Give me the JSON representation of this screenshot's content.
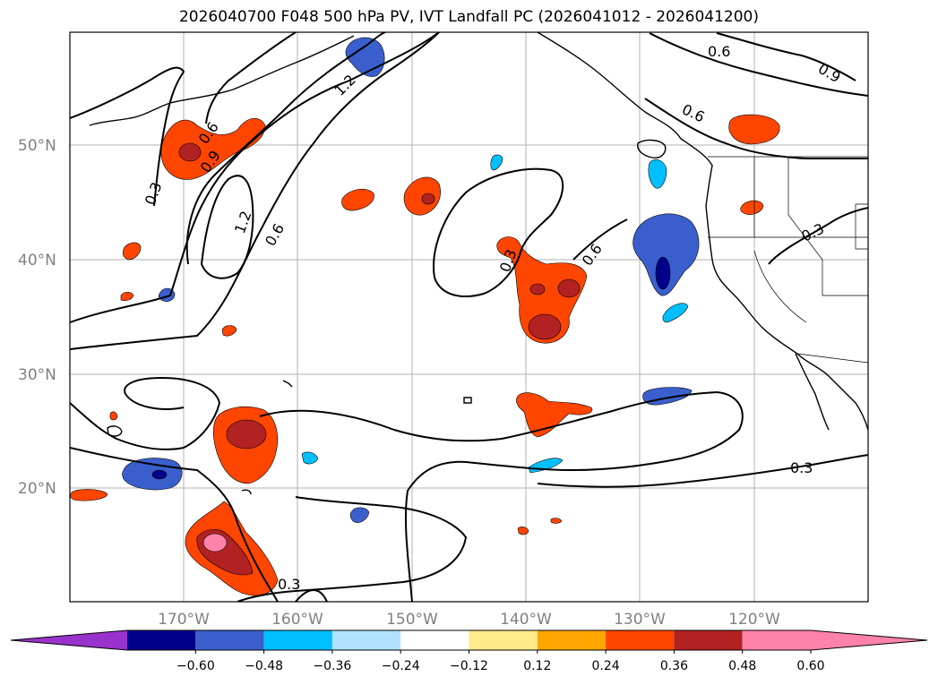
{
  "title": "2026040700 F048 500 hPa PV, IVT Landfall PC (2026041012 - 2026041200)",
  "lat_labels": [
    "50°N",
    "40°N",
    "30°N",
    "20°N"
  ],
  "lon_labels": [
    "170°W",
    "160°W",
    "150°W",
    "140°W",
    "130°W",
    "120°W"
  ],
  "colorbar": {
    "colors": [
      "#9932cc",
      "#00008b",
      "#3a5fcd",
      "#00bfff",
      "#b0e2ff",
      "#ffffff",
      "#ffeb8a",
      "#ffa500",
      "#ff4500",
      "#b22222",
      "#ff82ab",
      "#ff82ab"
    ],
    "tick_labels": [
      "−0.60",
      "−0.48",
      "−0.36",
      "−0.24",
      "−0.12",
      "0.12",
      "0.24",
      "0.36",
      "0.48",
      "0.60"
    ]
  },
  "contour_labels": [
    "0.6",
    "0.9",
    "1.2",
    "0.6",
    "0.9",
    "0.3",
    "1.2",
    "0.6",
    "0.3",
    "0.6",
    "0.3",
    "0.3",
    "0.3",
    "0.6"
  ]
}
